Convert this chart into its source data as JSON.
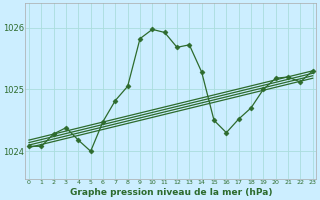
{
  "title": "Graphe pression niveau de la mer (hPa)",
  "bg_color": "#cceeff",
  "grid_color": "#aadddd",
  "line_color": "#2d6b2d",
  "text_color": "#2d6b2d",
  "xlim": [
    -0.3,
    23.3
  ],
  "ylim": [
    1023.55,
    1026.4
  ],
  "yticks": [
    1024,
    1025,
    1026
  ],
  "xtick_labels": [
    "0",
    "1",
    "2",
    "3",
    "4",
    "5",
    "6",
    "7",
    "8",
    "9",
    "10",
    "11",
    "12",
    "13",
    "14",
    "15",
    "16",
    "17",
    "18",
    "19",
    "20",
    "21",
    "22",
    "23"
  ],
  "hours": [
    0,
    1,
    2,
    3,
    4,
    5,
    6,
    7,
    8,
    9,
    10,
    11,
    12,
    13,
    14,
    15,
    16,
    17,
    18,
    19,
    20,
    21,
    22,
    23
  ],
  "pressure": [
    1024.08,
    1024.08,
    1024.28,
    1024.38,
    1024.18,
    1024.0,
    1024.48,
    1024.82,
    1025.05,
    1025.82,
    1025.97,
    1025.92,
    1025.68,
    1025.72,
    1025.28,
    1024.5,
    1024.3,
    1024.52,
    1024.7,
    1025.0,
    1025.18,
    1025.2,
    1025.12,
    1025.3
  ],
  "reg_lines": [
    [
      1024.06,
      1025.18
    ],
    [
      1024.1,
      1025.22
    ],
    [
      1024.14,
      1025.26
    ],
    [
      1024.18,
      1025.3
    ]
  ]
}
